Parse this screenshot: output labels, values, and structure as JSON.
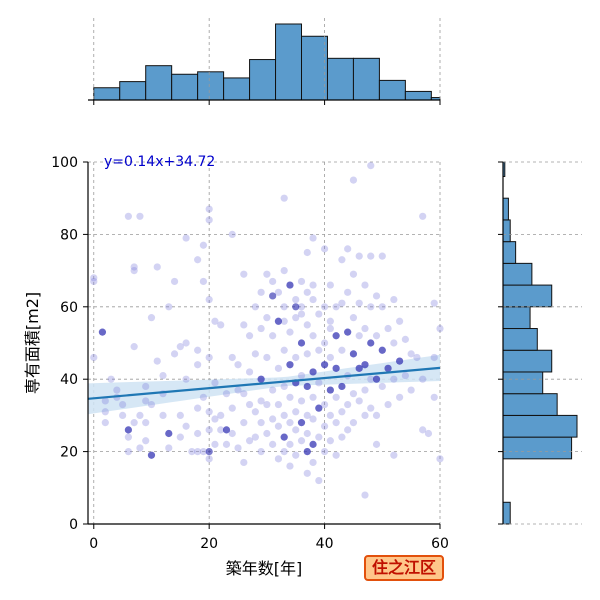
{
  "chart_data": {
    "type": "scatter",
    "xlabel": "築年数[年]",
    "ylabel": "専有面積[m2]",
    "xlim": [
      -1,
      60
    ],
    "ylim": [
      0,
      100
    ],
    "xticks": [
      0,
      20,
      40,
      60
    ],
    "yticks": [
      0,
      20,
      40,
      60,
      80,
      100
    ],
    "grid": true,
    "annotation": "y=0.14x+34.72",
    "regression": {
      "slope": 0.14,
      "intercept": 34.72,
      "x_range": [
        -1,
        60
      ]
    },
    "top_histogram": {
      "bin_edges": [
        0,
        4.5,
        9,
        13.5,
        18,
        22.5,
        27,
        31.5,
        36,
        40.5,
        45,
        49.5,
        54,
        58.5,
        60
      ],
      "counts": [
        10,
        15,
        28,
        21,
        23,
        18,
        33,
        62,
        52,
        34,
        34,
        16,
        7,
        2
      ]
    },
    "right_histogram": {
      "bin_edges": [
        0,
        6,
        12,
        18,
        24,
        30,
        36,
        42,
        48,
        54,
        60,
        66,
        72,
        78,
        84,
        90,
        96,
        100
      ],
      "counts": [
        4,
        0,
        0,
        38,
        41,
        30,
        22,
        27,
        19,
        15,
        27,
        16,
        7,
        4,
        3,
        0,
        1
      ]
    },
    "points": [
      [
        0,
        68
      ],
      [
        0,
        67
      ],
      [
        0,
        46
      ],
      [
        1.5,
        53
      ],
      [
        2,
        31
      ],
      [
        2,
        28
      ],
      [
        2,
        34
      ],
      [
        3,
        40
      ],
      [
        4,
        37
      ],
      [
        4,
        35
      ],
      [
        5,
        33
      ],
      [
        5,
        30
      ],
      [
        6,
        26
      ],
      [
        6,
        24
      ],
      [
        6,
        20
      ],
      [
        6,
        85
      ],
      [
        7,
        70
      ],
      [
        7,
        71
      ],
      [
        7,
        49
      ],
      [
        7,
        28
      ],
      [
        8,
        85
      ],
      [
        8,
        30
      ],
      [
        8,
        21
      ],
      [
        9,
        38
      ],
      [
        9,
        34
      ],
      [
        9,
        28
      ],
      [
        9,
        23
      ],
      [
        10,
        19
      ],
      [
        10,
        57
      ],
      [
        10,
        33
      ],
      [
        11,
        71
      ],
      [
        11,
        45
      ],
      [
        12,
        41
      ],
      [
        12,
        36
      ],
      [
        12,
        30
      ],
      [
        13,
        60
      ],
      [
        13,
        25
      ],
      [
        13,
        21
      ],
      [
        14,
        67
      ],
      [
        14,
        47
      ],
      [
        15,
        49
      ],
      [
        15,
        30
      ],
      [
        15,
        24
      ],
      [
        16,
        79
      ],
      [
        16,
        50
      ],
      [
        16,
        40
      ],
      [
        16,
        27
      ],
      [
        17,
        20
      ],
      [
        18,
        73
      ],
      [
        18,
        48
      ],
      [
        18,
        44
      ],
      [
        18,
        32
      ],
      [
        18,
        25
      ],
      [
        19,
        77
      ],
      [
        19,
        67
      ],
      [
        19,
        35
      ],
      [
        19,
        20
      ],
      [
        20,
        87
      ],
      [
        20,
        84
      ],
      [
        20,
        62
      ],
      [
        20,
        46
      ],
      [
        20,
        31
      ],
      [
        20,
        26
      ],
      [
        21,
        56
      ],
      [
        21,
        39
      ],
      [
        21,
        29
      ],
      [
        21,
        22
      ],
      [
        22,
        55
      ],
      [
        22,
        30
      ],
      [
        22,
        26
      ],
      [
        23,
        36
      ],
      [
        23,
        26
      ],
      [
        23,
        22
      ],
      [
        24,
        80
      ],
      [
        24,
        46
      ],
      [
        24,
        32
      ],
      [
        24,
        25
      ],
      [
        25,
        44
      ],
      [
        25,
        37
      ],
      [
        25,
        21
      ],
      [
        26,
        69
      ],
      [
        26,
        55
      ],
      [
        26,
        36
      ],
      [
        26,
        28
      ],
      [
        27,
        52
      ],
      [
        27,
        42
      ],
      [
        27,
        33
      ],
      [
        27,
        23
      ],
      [
        28,
        60
      ],
      [
        28,
        47
      ],
      [
        28,
        31
      ],
      [
        28,
        24
      ],
      [
        29,
        64
      ],
      [
        29,
        54
      ],
      [
        29,
        40
      ],
      [
        29,
        34
      ],
      [
        29,
        28
      ],
      [
        29,
        20
      ],
      [
        30,
        69
      ],
      [
        30,
        57
      ],
      [
        30,
        46
      ],
      [
        30,
        33
      ],
      [
        30,
        25
      ],
      [
        31,
        67
      ],
      [
        31,
        52
      ],
      [
        31,
        37
      ],
      [
        31,
        29
      ],
      [
        31,
        22
      ],
      [
        32,
        64
      ],
      [
        32,
        56
      ],
      [
        32,
        43
      ],
      [
        32,
        33
      ],
      [
        32,
        27
      ],
      [
        32,
        18
      ],
      [
        33,
        90
      ],
      [
        33,
        70
      ],
      [
        33,
        60
      ],
      [
        33,
        48
      ],
      [
        33,
        38
      ],
      [
        33,
        30
      ],
      [
        33,
        24
      ],
      [
        33,
        20
      ],
      [
        34,
        66
      ],
      [
        34,
        53
      ],
      [
        34,
        44
      ],
      [
        34,
        35
      ],
      [
        34,
        28
      ],
      [
        34,
        22
      ],
      [
        34,
        16
      ],
      [
        35,
        62
      ],
      [
        35,
        57
      ],
      [
        35,
        46
      ],
      [
        35,
        39
      ],
      [
        35,
        31
      ],
      [
        35,
        26
      ],
      [
        35,
        19
      ],
      [
        36,
        67
      ],
      [
        36,
        60
      ],
      [
        36,
        50
      ],
      [
        36,
        41
      ],
      [
        36,
        34
      ],
      [
        36,
        28
      ],
      [
        36,
        23
      ],
      [
        37,
        75
      ],
      [
        37,
        64
      ],
      [
        37,
        55
      ],
      [
        37,
        47
      ],
      [
        37,
        38
      ],
      [
        37,
        30
      ],
      [
        37,
        25
      ],
      [
        37,
        20
      ],
      [
        37,
        14
      ],
      [
        38,
        79
      ],
      [
        38,
        62
      ],
      [
        38,
        52
      ],
      [
        38,
        42
      ],
      [
        38,
        35
      ],
      [
        38,
        29
      ],
      [
        38,
        22
      ],
      [
        38,
        17
      ],
      [
        39,
        58
      ],
      [
        39,
        48
      ],
      [
        39,
        39
      ],
      [
        39,
        32
      ],
      [
        39,
        24
      ],
      [
        39,
        12
      ],
      [
        40,
        76
      ],
      [
        40,
        60
      ],
      [
        40,
        50
      ],
      [
        40,
        44
      ],
      [
        40,
        33
      ],
      [
        40,
        27
      ],
      [
        40,
        20
      ],
      [
        41,
        66
      ],
      [
        41,
        56
      ],
      [
        41,
        46
      ],
      [
        41,
        37
      ],
      [
        41,
        30
      ],
      [
        41,
        23
      ],
      [
        42,
        60
      ],
      [
        42,
        52
      ],
      [
        42,
        43
      ],
      [
        42,
        35
      ],
      [
        42,
        28
      ],
      [
        42,
        19
      ],
      [
        43,
        73
      ],
      [
        43,
        61
      ],
      [
        43,
        48
      ],
      [
        43,
        38
      ],
      [
        43,
        31
      ],
      [
        43,
        24
      ],
      [
        44,
        76
      ],
      [
        44,
        64
      ],
      [
        44,
        53
      ],
      [
        44,
        41
      ],
      [
        44,
        33
      ],
      [
        44,
        26
      ],
      [
        45,
        95
      ],
      [
        45,
        69
      ],
      [
        45,
        57
      ],
      [
        45,
        47
      ],
      [
        45,
        36
      ],
      [
        45,
        28
      ],
      [
        46,
        74
      ],
      [
        46,
        61
      ],
      [
        46,
        52
      ],
      [
        46,
        43
      ],
      [
        46,
        34
      ],
      [
        47,
        8
      ],
      [
        47,
        66
      ],
      [
        47,
        54
      ],
      [
        47,
        44
      ],
      [
        47,
        37
      ],
      [
        47,
        30
      ],
      [
        48,
        99
      ],
      [
        48,
        74
      ],
      [
        48,
        60
      ],
      [
        48,
        50
      ],
      [
        48,
        40
      ],
      [
        48,
        32
      ],
      [
        49,
        63
      ],
      [
        49,
        52
      ],
      [
        49,
        40
      ],
      [
        49,
        30
      ],
      [
        49,
        22
      ],
      [
        50,
        74
      ],
      [
        50,
        60
      ],
      [
        50,
        48
      ],
      [
        50,
        38
      ],
      [
        51,
        54
      ],
      [
        51,
        43
      ],
      [
        51,
        33
      ],
      [
        52,
        19
      ],
      [
        52,
        62
      ],
      [
        52,
        50
      ],
      [
        52,
        40
      ],
      [
        53,
        56
      ],
      [
        53,
        45
      ],
      [
        53,
        35
      ],
      [
        54,
        51
      ],
      [
        54,
        41
      ],
      [
        55,
        47
      ],
      [
        55,
        37
      ],
      [
        56,
        46
      ],
      [
        57,
        85
      ],
      [
        57,
        40
      ],
      [
        57,
        26
      ],
      [
        58,
        25
      ],
      [
        59,
        61
      ],
      [
        59,
        46
      ],
      [
        59,
        35
      ],
      [
        60,
        54
      ],
      [
        60,
        18
      ],
      [
        18,
        20
      ],
      [
        20,
        18
      ],
      [
        26,
        17
      ],
      [
        33,
        56
      ],
      [
        41,
        54
      ],
      [
        36,
        58
      ],
      [
        38,
        66
      ]
    ],
    "dark_points": [
      [
        1.5,
        53
      ],
      [
        6,
        26
      ],
      [
        10,
        19
      ],
      [
        13,
        25
      ],
      [
        20,
        20
      ],
      [
        23,
        26
      ],
      [
        29,
        40
      ],
      [
        31,
        63
      ],
      [
        32,
        56
      ],
      [
        33,
        24
      ],
      [
        34,
        66
      ],
      [
        34,
        44
      ],
      [
        35,
        60
      ],
      [
        35,
        39
      ],
      [
        36,
        50
      ],
      [
        36,
        28
      ],
      [
        37,
        38
      ],
      [
        37,
        20
      ],
      [
        38,
        42
      ],
      [
        38,
        22
      ],
      [
        39,
        32
      ],
      [
        40,
        44
      ],
      [
        41,
        37
      ],
      [
        42,
        52
      ],
      [
        42,
        43
      ],
      [
        43,
        38
      ],
      [
        44,
        53
      ],
      [
        45,
        47
      ],
      [
        46,
        43
      ],
      [
        47,
        44
      ],
      [
        48,
        50
      ],
      [
        50,
        48
      ],
      [
        51,
        43
      ],
      [
        49,
        40
      ],
      [
        53,
        45
      ]
    ]
  },
  "colors": {
    "bar_fill": "#5b9bcc",
    "bar_edge": "#111111",
    "point": "#8080dd",
    "point_dark": "#2222aa",
    "reg_line": "#1f77b4",
    "reg_band": "#cfe3f3",
    "annotation": "#0000cc",
    "grid": "#9a9a9a"
  },
  "badge": {
    "label": "住之江区"
  }
}
